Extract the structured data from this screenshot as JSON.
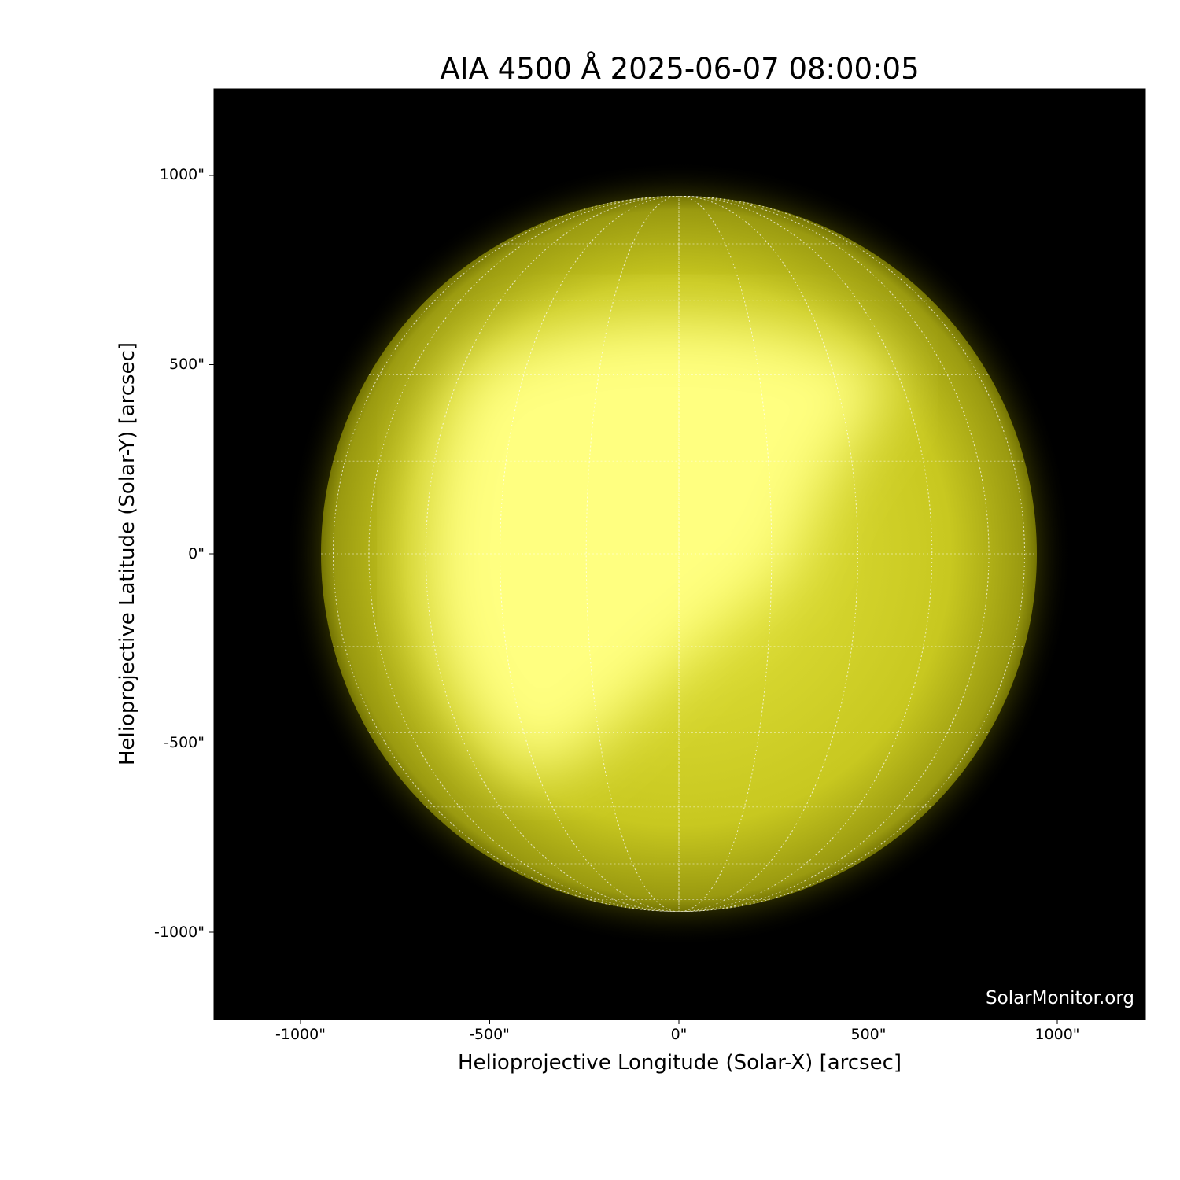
{
  "title": "AIA 4500 Å 2025-06-07 08:00:05",
  "x_axis": {
    "label": "Helioprojective Longitude (Solar-X) [arcsec]",
    "ticks": [
      "-1000\"",
      "-500\"",
      "0\"",
      "500\"",
      "1000\""
    ],
    "tick_values": [
      -1000,
      -500,
      0,
      500,
      1000
    ]
  },
  "y_axis": {
    "label": "Helioprojective Latitude (Solar-Y) [arcsec]",
    "ticks": [
      "1000\"",
      "500\"",
      "0\"",
      "-500\"",
      "-1000\""
    ],
    "tick_values": [
      1000,
      500,
      0,
      -500,
      -1000
    ]
  },
  "credit": "SolarMonitor.org",
  "colors": {
    "background": "#000000",
    "disk": "#c8c800",
    "bright": "#ffff80",
    "grid": "#ffffff"
  },
  "grid": {
    "type": "heliographic",
    "spacing_deg": 15
  }
}
